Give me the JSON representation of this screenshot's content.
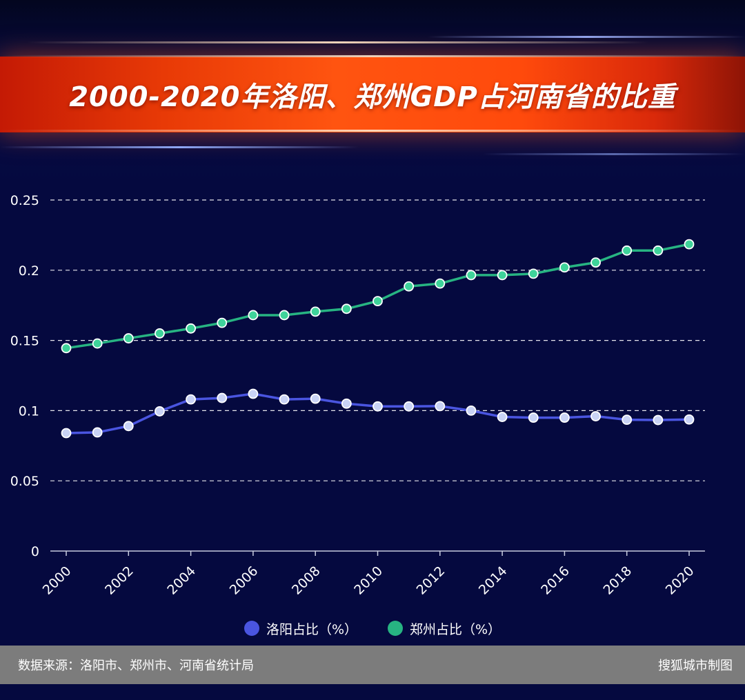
{
  "header": {
    "title": "2000-2020年洛阳、郑州GDP占河南省的比重"
  },
  "legend": {
    "items": [
      {
        "label": "洛阳占比（%）",
        "color": "#4a55e0"
      },
      {
        "label": "郑州占比（%）",
        "color": "#27b482"
      }
    ]
  },
  "footer": {
    "source": "数据来源：洛阳市、郑州市、河南省统计局",
    "credit": "搜狐城市制图"
  },
  "colors": {
    "background": "#05093f",
    "banner": "#ff4a0c",
    "luoyang_line": "#4a55e0",
    "zhengzhou_line": "#27b482",
    "marker_fill": "#c9d3f5",
    "zhengzhou_marker_fill": "#3fd39a"
  },
  "chart_data": {
    "type": "line",
    "title": "2000-2020年洛阳、郑州GDP占河南省的比重",
    "xlabel": "",
    "ylabel": "",
    "x": [
      2000,
      2001,
      2002,
      2003,
      2004,
      2005,
      2006,
      2007,
      2008,
      2009,
      2010,
      2011,
      2012,
      2013,
      2014,
      2015,
      2016,
      2017,
      2018,
      2019,
      2020
    ],
    "xticks": [
      "2000",
      "2002",
      "2004",
      "2006",
      "2008",
      "2010",
      "2012",
      "2014",
      "2016",
      "2018",
      "2020"
    ],
    "yticks": [
      "0",
      "0.05",
      "0.1",
      "0.15",
      "0.2",
      "0.25"
    ],
    "ylim": [
      0,
      0.25
    ],
    "grid": true,
    "legend_position": "bottom",
    "series": [
      {
        "name": "洛阳占比（%）",
        "values": [
          0.084,
          0.0845,
          0.089,
          0.0995,
          0.108,
          0.109,
          0.112,
          0.108,
          0.1085,
          0.105,
          0.103,
          0.103,
          0.1032,
          0.1,
          0.0955,
          0.095,
          0.095,
          0.096,
          0.0935,
          0.0933,
          0.0937
        ]
      },
      {
        "name": "郑州占比（%）",
        "values": [
          0.1445,
          0.1478,
          0.1515,
          0.155,
          0.1585,
          0.1625,
          0.168,
          0.168,
          0.1705,
          0.1725,
          0.178,
          0.1885,
          0.1905,
          0.1965,
          0.1965,
          0.1975,
          0.202,
          0.2055,
          0.214,
          0.214,
          0.2185
        ]
      }
    ]
  }
}
